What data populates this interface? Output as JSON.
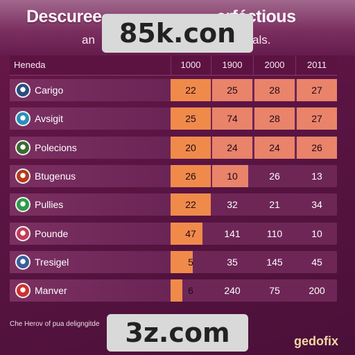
{
  "header": {
    "title_left": "Descuree",
    "title_right": "erféctious",
    "subtitle_left": "an",
    "subtitle_right": "als.",
    "watermark_top": "85k.con",
    "watermark_bottom": "3z.com"
  },
  "table": {
    "first_column_header": "Heneda",
    "columns": [
      "1000",
      "1900",
      "2000",
      "2011"
    ],
    "rows": [
      {
        "label": "Carigo",
        "icon": "bird-emblem-icon",
        "icon_color": "#2b4c7e",
        "values": [
          "22",
          "25",
          "28",
          "27"
        ],
        "fill": [
          1.0,
          1.0,
          1.0,
          1.0
        ]
      },
      {
        "label": "Avsigit",
        "icon": "gear-emblem-icon",
        "icon_color": "#2a8fb8",
        "values": [
          "25",
          "74",
          "28",
          "27"
        ],
        "fill": [
          1.0,
          1.0,
          1.0,
          1.0
        ]
      },
      {
        "label": "Polecions",
        "icon": "crest-emblem-icon",
        "icon_color": "#3a6b2f",
        "values": [
          "20",
          "24",
          "24",
          "26"
        ],
        "fill": [
          1.0,
          1.0,
          1.0,
          1.0
        ]
      },
      {
        "label": "Btugenus",
        "icon": "lion-emblem-icon",
        "icon_color": "#b53a1f",
        "values": [
          "26",
          "10",
          "26",
          "13"
        ],
        "fill": [
          1.0,
          0.9,
          0.0,
          0.0
        ]
      },
      {
        "label": "Pullies",
        "icon": "leaf-emblem-icon",
        "icon_color": "#2f9a4a",
        "values": [
          "22",
          "32",
          "21",
          "34"
        ],
        "fill": [
          1.0,
          0.0,
          0.0,
          0.0
        ]
      },
      {
        "label": "Pounde",
        "icon": "bull-emblem-icon",
        "icon_color": "#c23b5a",
        "values": [
          "47",
          "141",
          "110",
          "10"
        ],
        "fill": [
          0.8,
          0.0,
          0.0,
          0.0
        ]
      },
      {
        "label": "Tresigel",
        "icon": "knight-emblem-icon",
        "icon_color": "#3b5f9a",
        "values": [
          "5",
          "35",
          "145",
          "45"
        ],
        "fill": [
          0.55,
          0.0,
          0.0,
          0.0
        ]
      },
      {
        "label": "Manver",
        "icon": "eagle-emblem-icon",
        "icon_color": "#cf2f2f",
        "values": [
          "6",
          "240",
          "75",
          "200"
        ],
        "fill": [
          0.3,
          0.0,
          0.0,
          0.0
        ]
      }
    ]
  },
  "footer": {
    "left_text": "Che Herov of pua deligngitde",
    "right_text": "gedofix"
  },
  "colors": {
    "cell_fill": "#f08a4b",
    "cell_fill_light": "#e9836a"
  }
}
